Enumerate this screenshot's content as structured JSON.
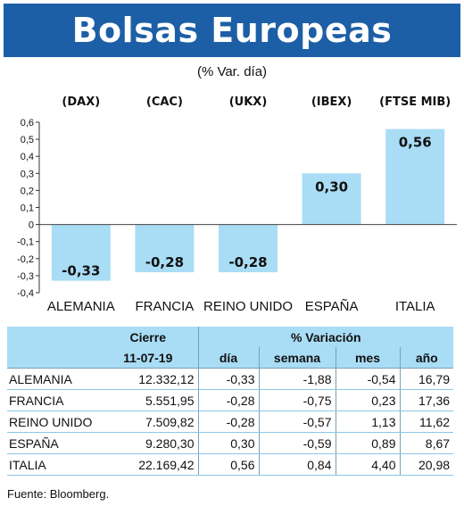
{
  "header": {
    "title": "Bolsas Europeas",
    "subtitle": "(% Var. día)"
  },
  "chart_data": {
    "type": "bar",
    "indices": [
      "(DAX)",
      "(CAC)",
      "(UKX)",
      "(IBEX)",
      "(FTSE MIB)"
    ],
    "categories": [
      "ALEMANIA",
      "FRANCIA",
      "REINO UNIDO",
      "ESPAÑA",
      "ITALIA"
    ],
    "values": [
      -0.33,
      -0.28,
      -0.28,
      0.3,
      0.56
    ],
    "value_labels": [
      "-0,33",
      "-0,28",
      "-0,28",
      "0,30",
      "0,56"
    ],
    "ylim": [
      -0.4,
      0.6
    ],
    "yticks": [
      0.6,
      0.5,
      0.4,
      0.3,
      0.2,
      0.1,
      0,
      -0.1,
      -0.2,
      -0.3,
      -0.4
    ],
    "ytick_labels": [
      "0,6",
      "0,5",
      "0,4",
      "0,3",
      "0,2",
      "0,1",
      "0",
      "-0,1",
      "-0,2",
      "-0,3",
      "-0,4"
    ],
    "bar_color": "#a9dcf5"
  },
  "table": {
    "header_cierre": "Cierre",
    "header_variacion": "% Variación",
    "date": "11-07-19",
    "col_dia": "día",
    "col_semana": "semana",
    "col_mes": "mes",
    "col_ano": "año",
    "rows": [
      {
        "name": "ALEMANIA",
        "cierre": "12.332,12",
        "dia": "-0,33",
        "semana": "-1,88",
        "mes": "-0,54",
        "ano": "16,79"
      },
      {
        "name": "FRANCIA",
        "cierre": "5.551,95",
        "dia": "-0,28",
        "semana": "-0,75",
        "mes": "0,23",
        "ano": "17,36"
      },
      {
        "name": "REINO UNIDO",
        "cierre": "7.509,82",
        "dia": "-0,28",
        "semana": "-0,57",
        "mes": "1,13",
        "ano": "11,62"
      },
      {
        "name": "ESPAÑA",
        "cierre": "9.280,30",
        "dia": "0,30",
        "semana": "-0,59",
        "mes": "0,89",
        "ano": "8,67"
      },
      {
        "name": "ITALIA",
        "cierre": "22.169,42",
        "dia": "0,56",
        "semana": "0,84",
        "mes": "4,40",
        "ano": "20,98"
      }
    ]
  },
  "footer": {
    "source": "Fuente: Bloomberg."
  }
}
